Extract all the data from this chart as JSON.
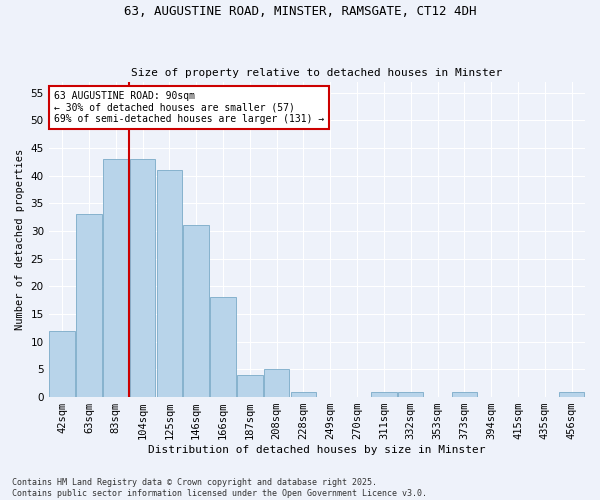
{
  "title1": "63, AUGUSTINE ROAD, MINSTER, RAMSGATE, CT12 4DH",
  "title2": "Size of property relative to detached houses in Minster",
  "xlabel": "Distribution of detached houses by size in Minster",
  "ylabel": "Number of detached properties",
  "categories": [
    "42sqm",
    "63sqm",
    "83sqm",
    "104sqm",
    "125sqm",
    "146sqm",
    "166sqm",
    "187sqm",
    "208sqm",
    "228sqm",
    "249sqm",
    "270sqm",
    "311sqm",
    "332sqm",
    "353sqm",
    "373sqm",
    "394sqm",
    "415sqm",
    "435sqm",
    "456sqm"
  ],
  "values": [
    12,
    33,
    43,
    43,
    41,
    31,
    18,
    4,
    5,
    1,
    0,
    0,
    1,
    1,
    0,
    1,
    0,
    0,
    0,
    1
  ],
  "bar_color": "#b8d4ea",
  "bar_edge_color": "#7aaac8",
  "vline_x_index": 2.5,
  "vline_color": "#cc0000",
  "annotation_text": "63 AUGUSTINE ROAD: 90sqm\n← 30% of detached houses are smaller (57)\n69% of semi-detached houses are larger (131) →",
  "annotation_box_color": "#ffffff",
  "annotation_box_edge": "#cc0000",
  "ylim": [
    0,
    57
  ],
  "yticks": [
    0,
    5,
    10,
    15,
    20,
    25,
    30,
    35,
    40,
    45,
    50,
    55
  ],
  "background_color": "#eef2fa",
  "grid_color": "#ffffff",
  "footer": "Contains HM Land Registry data © Crown copyright and database right 2025.\nContains public sector information licensed under the Open Government Licence v3.0."
}
